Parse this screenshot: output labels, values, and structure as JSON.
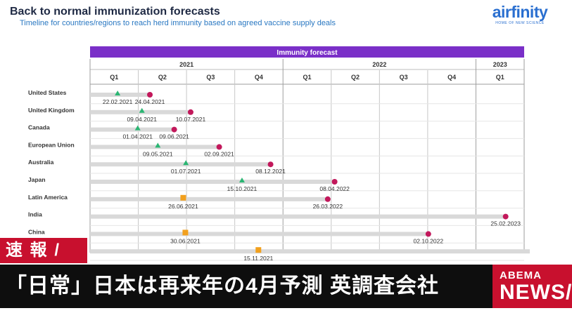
{
  "header": {
    "title": "Back to normal immunization forecasts",
    "subtitle": "Timeline for countries/regions to reach herd immunity based on agreed vaccine supply deals",
    "logo_text": "airfinity",
    "logo_tagline": "HOME OF NEW SCIENCE"
  },
  "colors": {
    "header_purple": "#7a2fc8",
    "bar_gray": "#d9d9d9",
    "end_marker": "#c2185b",
    "start_green": "#2bb673",
    "start_orange": "#f2a01d",
    "banner_red": "#c8102e",
    "banner_black": "#0e0e0e"
  },
  "chart_data": {
    "type": "gantt",
    "title": "Immunity forecast",
    "years": [
      {
        "label": "2021",
        "quarters": 4
      },
      {
        "label": "2022",
        "quarters": 4
      },
      {
        "label": "2023",
        "quarters": 1
      }
    ],
    "quarters": [
      "Q1",
      "Q2",
      "Q3",
      "Q4",
      "Q1",
      "Q2",
      "Q3",
      "Q4",
      "Q1"
    ],
    "rows": [
      {
        "name": "United States",
        "start": "22.02.2021",
        "end": "24.04.2021",
        "start_marker": "green"
      },
      {
        "name": "United Kingdom",
        "start": "09.04.2021",
        "end": "10.07.2021",
        "start_marker": "green"
      },
      {
        "name": "Canada",
        "start": "01.04.2021",
        "end": "09.06.2021",
        "start_marker": "green"
      },
      {
        "name": "European Union",
        "start": "09.05.2021",
        "end": "02.09.2021",
        "start_marker": "green"
      },
      {
        "name": "Australia",
        "start": "01.07.2021",
        "end": "08.12.2021",
        "start_marker": "green"
      },
      {
        "name": "Japan",
        "start": "15.10.2021",
        "end": "08.04.2022",
        "start_marker": "green"
      },
      {
        "name": "Latin America",
        "start": "26.06.2021",
        "end": "26.03.2022",
        "start_marker": "orange"
      },
      {
        "name": "India",
        "start": "",
        "end": "25.02.2023",
        "start_marker": "none"
      },
      {
        "name": "China",
        "start": "30.06.2021",
        "end": "02.10.2022",
        "start_marker": "orange"
      },
      {
        "name": "",
        "start": "15.11.2021",
        "end": "",
        "start_marker": "orange"
      }
    ]
  },
  "banner": {
    "flash_label": "速 報 /",
    "headline": "「日常」日本は再来年の4月予測 英調査会社",
    "brand_top": "ABEMA",
    "brand_bottom": "NEWS/"
  }
}
